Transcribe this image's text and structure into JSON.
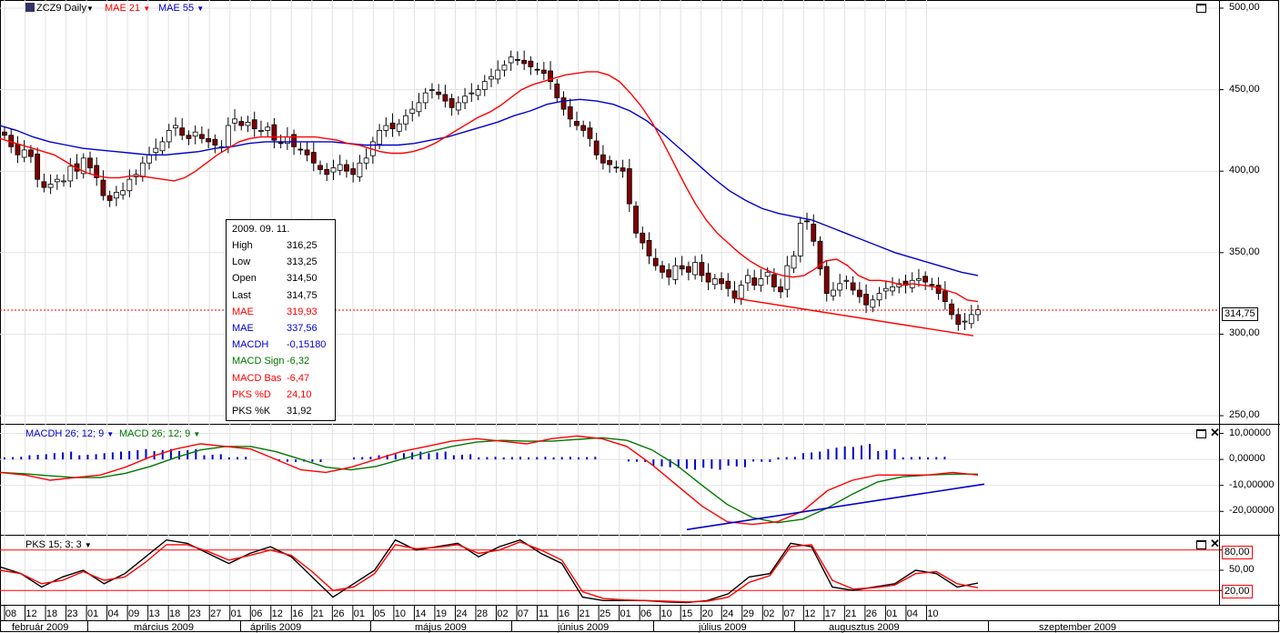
{
  "header": {
    "symbol": "ZCZ9 Daily",
    "mae21": "MAE 21",
    "mae55": "MAE 55"
  },
  "macd_header": {
    "macdh": "MACDH 26; 12; 9",
    "macd": "MACD 26; 12; 9"
  },
  "pks_header": "PKS 15; 3; 3",
  "info_box": {
    "date": "2009. 09. 11.",
    "rows": [
      {
        "label": "High",
        "value": "316,25",
        "color": "#000000"
      },
      {
        "label": "Low",
        "value": "313,25",
        "color": "#000000"
      },
      {
        "label": "Open",
        "value": "314,50",
        "color": "#000000"
      },
      {
        "label": "Last",
        "value": "314,75",
        "color": "#000000"
      },
      {
        "label": "MAE",
        "value": "319,93",
        "color": "#ff0000"
      },
      {
        "label": "MAE",
        "value": "337,56",
        "color": "#0000cc"
      },
      {
        "label": "MACDH",
        "value": "-0,15180",
        "color": "#0000cc"
      },
      {
        "label": "MACD Sign",
        "value": "-6,32",
        "color": "#007700"
      },
      {
        "label": "MACD Bas",
        "value": "-6,47",
        "color": "#ff0000"
      },
      {
        "label": "PKS %D",
        "value": "24,10",
        "color": "#ff0000"
      },
      {
        "label": "PKS %K",
        "value": "31,92",
        "color": "#000000"
      }
    ]
  },
  "last_price": "314,75",
  "pks_levels": {
    "upper": "80,00",
    "lower": "20,00"
  },
  "colors": {
    "mae21": "#ff0000",
    "mae55": "#0000cc",
    "macd_signal": "#007700",
    "macd_base": "#ff0000",
    "macd_hist": "#0000cc",
    "pks_k": "#000000",
    "pks_d": "#ff0000",
    "candle_down": "#800000",
    "candle_up": "#ffffff"
  },
  "chart_data": [
    {
      "type": "candlestick",
      "title": "ZCZ9 Daily",
      "y_ticks": [
        "500,00",
        "450,00",
        "400,00",
        "350,00",
        "300,00",
        "250,00"
      ],
      "ylim": [
        245,
        505
      ],
      "x_tick_labels": [
        "08",
        "12",
        "18",
        "23",
        "01",
        "04",
        "09",
        "13",
        "18",
        "23",
        "27",
        "01",
        "06",
        "12",
        "16",
        "21",
        "26",
        "01",
        "05",
        "10",
        "14",
        "19",
        "24",
        "28",
        "02",
        "07",
        "11",
        "16",
        "21",
        "25",
        "01",
        "06",
        "10",
        "15",
        "20",
        "24",
        "29",
        "02",
        "07",
        "12",
        "17",
        "21",
        "26",
        "01",
        "04",
        "10"
      ],
      "months": [
        "február 2009",
        "március 2009",
        "április 2009",
        "május 2009",
        "június 2009",
        "július 2009",
        "augusztus 2009",
        "szeptember 2009"
      ],
      "close": [
        422,
        415,
        410,
        413,
        409,
        395,
        390,
        392,
        395,
        394,
        403,
        400,
        408,
        402,
        396,
        385,
        382,
        387,
        388,
        395,
        398,
        405,
        410,
        414,
        418,
        425,
        428,
        422,
        420,
        424,
        420,
        418,
        416,
        415,
        428,
        432,
        428,
        430,
        426,
        425,
        427,
        419,
        417,
        421,
        415,
        413,
        410,
        405,
        401,
        398,
        402,
        404,
        400,
        398,
        405,
        408,
        418,
        425,
        428,
        426,
        429,
        434,
        438,
        442,
        448,
        450,
        447,
        443,
        439,
        442,
        446,
        448,
        450,
        455,
        458,
        462,
        465,
        470,
        468,
        466,
        464,
        462,
        460,
        455,
        445,
        438,
        432,
        428,
        425,
        420,
        410,
        405,
        404,
        402,
        400,
        380,
        362,
        356,
        348,
        342,
        338,
        335,
        342,
        340,
        338,
        344,
        336,
        332,
        334,
        331,
        328,
        322,
        330,
        336,
        330,
        334,
        338,
        329,
        326,
        342,
        348,
        368,
        369,
        357,
        340,
        325,
        327,
        331,
        333,
        327,
        323,
        318,
        321,
        325,
        328,
        329,
        331,
        330,
        333,
        334,
        332,
        330,
        325,
        320,
        312,
        306,
        308,
        312,
        315
      ],
      "mae21": [
        420,
        418,
        416,
        414,
        412,
        410,
        406,
        402,
        399,
        397,
        396,
        396,
        397,
        397,
        396,
        395,
        394,
        396,
        400,
        405,
        410,
        414,
        418,
        420,
        421,
        421,
        421,
        421,
        421,
        421,
        420,
        419,
        417,
        416,
        414,
        412,
        411,
        411,
        412,
        414,
        417,
        421,
        425,
        429,
        433,
        436,
        440,
        445,
        450,
        453,
        455,
        457,
        459,
        460,
        461,
        461,
        459,
        455,
        448,
        440,
        430,
        418,
        405,
        392,
        380,
        370,
        362,
        356,
        350,
        345,
        341,
        338,
        336,
        335,
        336,
        340,
        345,
        346,
        342,
        336,
        333,
        333,
        332,
        330,
        331,
        330,
        329,
        327,
        325,
        321,
        320
      ],
      "mae55": [
        428,
        425,
        421,
        418,
        416,
        414,
        413,
        412,
        411,
        410,
        410,
        411,
        412,
        414,
        415,
        417,
        418,
        418,
        418,
        418,
        418,
        417,
        416,
        416,
        416,
        417,
        419,
        421,
        424,
        427,
        430,
        434,
        437,
        441,
        443,
        444,
        443,
        441,
        437,
        431,
        423,
        414,
        405,
        396,
        388,
        382,
        377,
        374,
        372,
        370,
        366,
        362,
        358,
        354,
        350,
        347,
        344,
        341,
        338,
        336
      ],
      "trendline": {
        "from": 322,
        "to": 299
      }
    },
    {
      "type": "line+bar",
      "title": "MACDH 26; 12; 9 / MACD 26; 12; 9",
      "y_ticks": [
        "10,00000",
        "0,00000",
        "-10,00000",
        "-20,00000"
      ],
      "ylim": [
        -29,
        13
      ],
      "series": [
        {
          "name": "MACD 26; 12; 9",
          "values": [
            -5,
            -6,
            -8,
            -7,
            -6,
            -3,
            1,
            4,
            6,
            5,
            4,
            0,
            -4,
            -5,
            -3,
            0,
            3,
            5,
            7,
            8,
            7,
            6,
            8,
            9,
            8,
            5,
            -2,
            -10,
            -18,
            -24,
            -25,
            -24,
            -20,
            -12,
            -8,
            -6,
            -6,
            -6,
            -5,
            -6
          ]
        },
        {
          "name": "MACDH 26; 12; 9",
          "values": [
            1,
            2,
            3,
            2,
            3,
            4,
            4,
            4,
            2,
            1,
            0,
            -1,
            -1,
            0,
            1,
            2,
            3,
            3,
            2,
            1,
            1,
            1,
            1,
            1,
            0,
            -1,
            -3,
            -4,
            -4,
            -3,
            -1,
            1,
            3,
            5,
            6,
            4,
            1,
            1,
            0,
            0
          ]
        }
      ]
    },
    {
      "type": "line",
      "title": "PKS 15; 3; 3",
      "y_ticks": [
        "80,00",
        "50,00",
        "20,00"
      ],
      "ylim": [
        0,
        100
      ],
      "series": [
        {
          "name": "PKS %K",
          "values": [
            55,
            45,
            25,
            40,
            50,
            30,
            45,
            70,
            95,
            90,
            75,
            60,
            75,
            85,
            70,
            40,
            10,
            30,
            50,
            95,
            80,
            85,
            90,
            70,
            85,
            95,
            75,
            60,
            10,
            5,
            5,
            5,
            3,
            2,
            5,
            15,
            40,
            45,
            90,
            85,
            25,
            20,
            25,
            30,
            50,
            45,
            25,
            31
          ]
        },
        {
          "name": "PKS %D",
          "values": [
            50,
            45,
            30,
            35,
            48,
            35,
            40,
            62,
            88,
            88,
            78,
            65,
            72,
            80,
            72,
            48,
            20,
            25,
            45,
            88,
            82,
            84,
            88,
            75,
            80,
            92,
            80,
            65,
            18,
            8,
            6,
            5,
            4,
            3,
            4,
            10,
            32,
            42,
            85,
            88,
            35,
            22,
            24,
            28,
            45,
            48,
            30,
            24
          ]
        }
      ]
    }
  ]
}
